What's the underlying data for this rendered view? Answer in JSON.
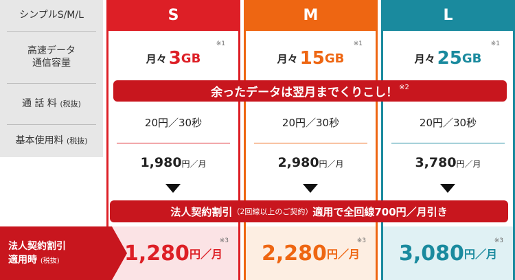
{
  "left": {
    "title": "シンプルS/M/L",
    "data_line1": "高速データ",
    "data_line2": "通信容量",
    "call": "通 話 料",
    "call_suffix": "(税抜)",
    "base": "基本使用料",
    "base_suffix": "(税抜)",
    "discount_line1": "法人契約割引",
    "discount_line2": "適用時",
    "discount_suffix": "(税抜)"
  },
  "plans": [
    {
      "name": "S",
      "data_prefix": "月々",
      "data_amount": "3",
      "data_unit": "GB",
      "data_note": "※1",
      "rate": "20円／30秒",
      "fee": "1,980",
      "fee_unit": "円／月",
      "disc_fee": "1,280",
      "disc_unit": "円／月",
      "disc_note": "※3"
    },
    {
      "name": "M",
      "data_prefix": "月々",
      "data_amount": "15",
      "data_unit": "GB",
      "data_note": "※1",
      "rate": "20円／30秒",
      "fee": "2,980",
      "fee_unit": "円／月",
      "disc_fee": "2,280",
      "disc_unit": "円／月",
      "disc_note": "※3"
    },
    {
      "name": "L",
      "data_prefix": "月々",
      "data_amount": "25",
      "data_unit": "GB",
      "data_note": "※1",
      "rate": "20円／30秒",
      "fee": "3,780",
      "fee_unit": "円／月",
      "disc_fee": "3,080",
      "disc_unit": "円／月",
      "disc_note": "※3"
    }
  ],
  "banner_rollover": {
    "text": "余ったデータは翌月までくりこし！",
    "note": "※2"
  },
  "banner_discount": {
    "part1": "法人契約割引",
    "part2": "（2回線以上のご契約）",
    "part3": "適用で全回線700円／月引き"
  },
  "colors": {
    "S": "#dd1f26",
    "M": "#ee6612",
    "L": "#1a8a9e",
    "banner": "#c8161e",
    "S_bg": "#fbe3e5",
    "M_bg": "#fdeee2",
    "L_bg": "#e0f1f4"
  }
}
